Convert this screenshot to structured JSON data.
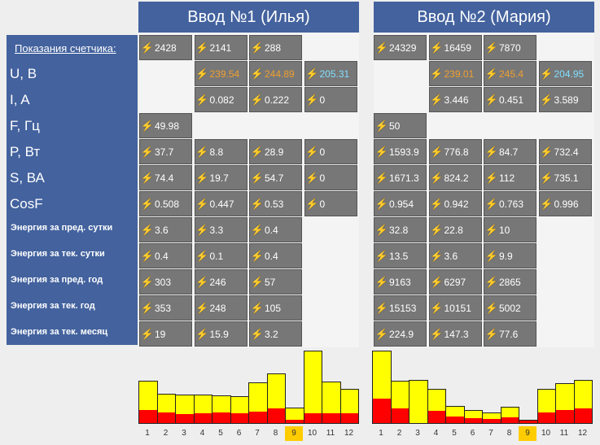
{
  "inputs": [
    {
      "title": "Ввод №1 (Илья)"
    },
    {
      "title": "Ввод №2 (Мария)"
    }
  ],
  "row_labels": [
    "Показания счетчика:",
    "U, В",
    "I, A",
    "F, Гц",
    "P, Вт",
    "S, ВА",
    "CosF",
    "Энергия за пред. сутки",
    "Энергия за тек. сутки",
    "Энергия за пред. год",
    "Энергия за тек. год",
    "Энергия за тек. месяц"
  ],
  "icon": "lightning-bolt-icon",
  "colors": {
    "header": "#43629e",
    "cell": "#777777",
    "phase_value": "#f0a030",
    "neutral_value": "#80dfff",
    "bar": "#ffff00",
    "bar_part": "#ff0000",
    "current_month": "#ffcc00"
  },
  "tables": [
    [
      [
        "2428",
        "2141",
        "288",
        null
      ],
      [
        null,
        "239.54",
        "244.89",
        "205.31"
      ],
      [
        null,
        "0.082",
        "0.222",
        "0"
      ],
      [
        "49.98",
        null,
        null,
        null
      ],
      [
        "37.7",
        "8.8",
        "28.9",
        "0"
      ],
      [
        "74.4",
        "19.7",
        "54.7",
        "0"
      ],
      [
        "0.508",
        "0.447",
        "0.53",
        "0"
      ],
      [
        "3.6",
        "3.3",
        "0.4",
        null
      ],
      [
        "0.4",
        "0.1",
        "0.4",
        null
      ],
      [
        "303",
        "246",
        "57",
        null
      ],
      [
        "353",
        "248",
        "105",
        null
      ],
      [
        "19",
        "15.9",
        "3.2",
        null
      ]
    ],
    [
      [
        "24329",
        "16459",
        "7870",
        null
      ],
      [
        null,
        "239.01",
        "245.4",
        "204.95"
      ],
      [
        null,
        "3.446",
        "0.451",
        "3.589"
      ],
      [
        "50",
        null,
        null,
        null
      ],
      [
        "1593.9",
        "776.8",
        "84.7",
        "732.4"
      ],
      [
        "1671.3",
        "824.2",
        "112",
        "735.1"
      ],
      [
        "0.954",
        "0.942",
        "0.763",
        "0.996"
      ],
      [
        "32.8",
        "22.8",
        "10",
        null
      ],
      [
        "13.5",
        "3.6",
        "9.9",
        null
      ],
      [
        "9163",
        "6297",
        "2865",
        null
      ],
      [
        "15153",
        "10151",
        "5002",
        null
      ],
      [
        "224.9",
        "147.3",
        "77.6",
        null
      ]
    ]
  ],
  "chart_data": [
    {
      "type": "bar",
      "title": "",
      "categories": [
        "1",
        "2",
        "3",
        "4",
        "5",
        "6",
        "7",
        "8",
        "9",
        "10",
        "11",
        "12"
      ],
      "current": "9",
      "ylim": [
        0,
        90
      ],
      "series": [
        {
          "name": "total",
          "values": [
            53,
            37,
            36,
            36,
            35,
            34,
            51,
            62,
            20,
            90,
            52,
            43
          ]
        },
        {
          "name": "part",
          "values": [
            16,
            13,
            11,
            12,
            13,
            12,
            14,
            18,
            4,
            12,
            12,
            12
          ]
        }
      ]
    },
    {
      "type": "bar",
      "title": "",
      "categories": [
        "1",
        "2",
        "3",
        "4",
        "5",
        "6",
        "7",
        "8",
        "9",
        "10",
        "11",
        "12"
      ],
      "current": "9",
      "ylim": [
        0,
        90
      ],
      "series": [
        {
          "name": "total",
          "values": [
            90,
            53,
            54,
            43,
            22,
            17,
            14,
            21,
            5,
            43,
            50,
            54
          ]
        },
        {
          "name": "part",
          "values": [
            30,
            18,
            0,
            15,
            8,
            6,
            5,
            7,
            3,
            13,
            16,
            18
          ]
        }
      ]
    }
  ]
}
